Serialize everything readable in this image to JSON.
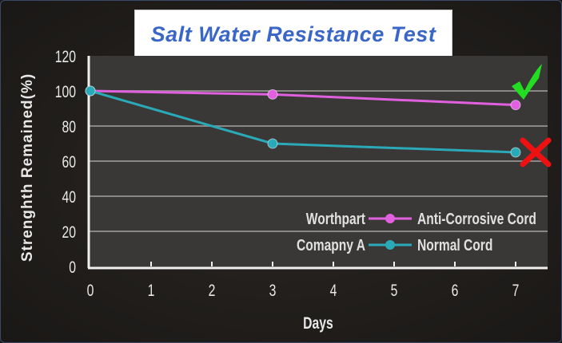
{
  "chart_data": {
    "type": "line",
    "title": "Salt Water Resistance  Test",
    "xlabel": "Days",
    "ylabel": "Strenghth Remained(%)",
    "x_ticks": [
      "0",
      "1",
      "2",
      "3",
      "4",
      "5",
      "6",
      "7"
    ],
    "y_ticks": [
      "0",
      "20",
      "40",
      "60",
      "80",
      "100",
      "120"
    ],
    "xlim": [
      0,
      7.5
    ],
    "ylim": [
      0,
      120
    ],
    "grid": true,
    "legend_position": "bottom-right",
    "series": [
      {
        "name": "Anti-Corrosive Cord",
        "brand": "Worthpart",
        "color": "#e060e0",
        "x": [
          0,
          3,
          7
        ],
        "y": [
          100,
          98,
          92
        ],
        "marker_note": "check"
      },
      {
        "name": "Normal Cord",
        "brand": "Comapny A",
        "color": "#2aaab8",
        "x": [
          0,
          3,
          7
        ],
        "y": [
          100,
          70,
          65
        ],
        "marker_note": "cross"
      }
    ]
  },
  "colors": {
    "check": "#22dd22",
    "cross": "#ee1111"
  }
}
